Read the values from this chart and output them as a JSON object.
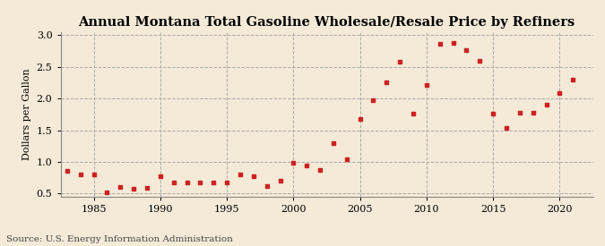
{
  "title": "Annual Montana Total Gasoline Wholesale/Resale Price by Refiners",
  "ylabel": "Dollars per Gallon",
  "source": "Source: U.S. Energy Information Administration",
  "background_color": "#f5ead8",
  "marker_color": "#cc2222",
  "xlim": [
    1982.5,
    2022.5
  ],
  "ylim": [
    0.45,
    3.05
  ],
  "yticks": [
    0.5,
    1.0,
    1.5,
    2.0,
    2.5,
    3.0
  ],
  "xticks": [
    1985,
    1990,
    1995,
    2000,
    2005,
    2010,
    2015,
    2020
  ],
  "years": [
    1983,
    1984,
    1985,
    1986,
    1987,
    1988,
    1989,
    1990,
    1991,
    1992,
    1993,
    1994,
    1995,
    1996,
    1997,
    1998,
    1999,
    2000,
    2001,
    2002,
    2003,
    2004,
    2005,
    2006,
    2007,
    2008,
    2009,
    2010,
    2011,
    2012,
    2013,
    2014,
    2015,
    2016,
    2017,
    2018,
    2019,
    2020,
    2021
  ],
  "values": [
    0.86,
    0.8,
    0.8,
    0.52,
    0.6,
    0.58,
    0.59,
    0.78,
    0.68,
    0.68,
    0.67,
    0.67,
    0.67,
    0.8,
    0.78,
    0.62,
    0.7,
    0.99,
    0.95,
    0.88,
    1.3,
    1.04,
    1.68,
    1.97,
    2.25,
    2.58,
    1.76,
    2.22,
    2.86,
    2.88,
    2.76,
    2.6,
    1.76,
    1.54,
    1.77,
    1.78,
    1.91,
    2.09,
    2.3
  ],
  "title_fontsize": 10.5,
  "ylabel_fontsize": 8,
  "tick_fontsize": 8,
  "source_fontsize": 7.5,
  "marker_size": 10
}
